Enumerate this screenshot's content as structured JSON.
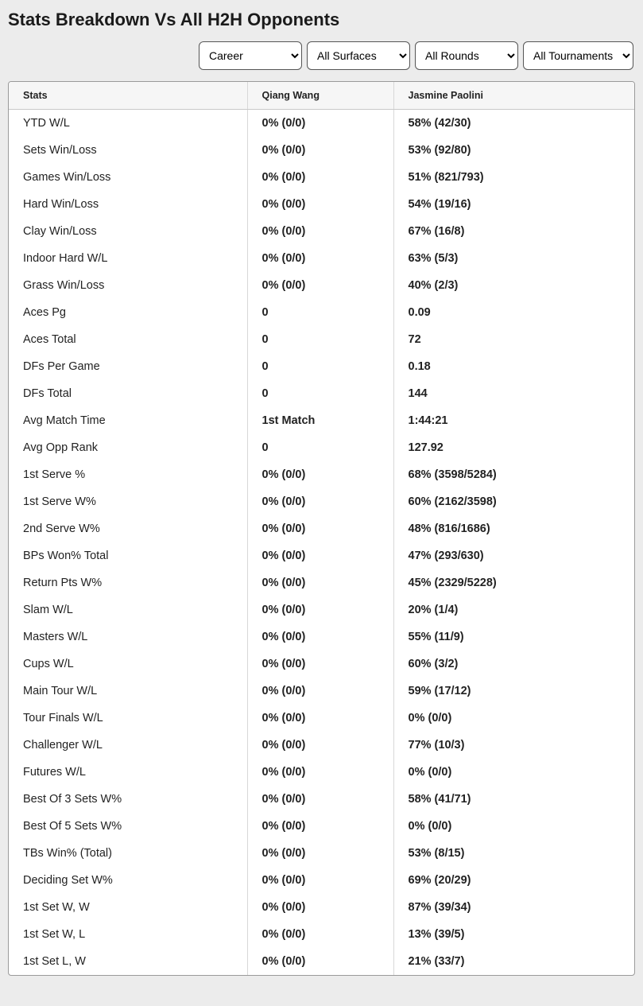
{
  "title": "Stats Breakdown Vs All H2H Opponents",
  "filters": {
    "period": "Career",
    "surface": "All Surfaces",
    "round": "All Rounds",
    "tournament": "All Tournaments"
  },
  "table": {
    "headers": {
      "stat": "Stats",
      "p1": "Qiang Wang",
      "p2": "Jasmine Paolini"
    },
    "rows": [
      {
        "stat": "YTD W/L",
        "p1": "0% (0/0)",
        "p2": "58% (42/30)"
      },
      {
        "stat": "Sets Win/Loss",
        "p1": "0% (0/0)",
        "p2": "53% (92/80)"
      },
      {
        "stat": "Games Win/Loss",
        "p1": "0% (0/0)",
        "p2": "51% (821/793)"
      },
      {
        "stat": "Hard Win/Loss",
        "p1": "0% (0/0)",
        "p2": "54% (19/16)"
      },
      {
        "stat": "Clay Win/Loss",
        "p1": "0% (0/0)",
        "p2": "67% (16/8)"
      },
      {
        "stat": "Indoor Hard W/L",
        "p1": "0% (0/0)",
        "p2": "63% (5/3)"
      },
      {
        "stat": "Grass Win/Loss",
        "p1": "0% (0/0)",
        "p2": "40% (2/3)"
      },
      {
        "stat": "Aces Pg",
        "p1": "0",
        "p2": "0.09"
      },
      {
        "stat": "Aces Total",
        "p1": "0",
        "p2": "72"
      },
      {
        "stat": "DFs Per Game",
        "p1": "0",
        "p2": "0.18"
      },
      {
        "stat": "DFs Total",
        "p1": "0",
        "p2": "144"
      },
      {
        "stat": "Avg Match Time",
        "p1": "1st Match",
        "p2": "1:44:21"
      },
      {
        "stat": "Avg Opp Rank",
        "p1": "0",
        "p2": "127.92"
      },
      {
        "stat": "1st Serve %",
        "p1": "0% (0/0)",
        "p2": "68% (3598/5284)"
      },
      {
        "stat": "1st Serve W%",
        "p1": "0% (0/0)",
        "p2": "60% (2162/3598)"
      },
      {
        "stat": "2nd Serve W%",
        "p1": "0% (0/0)",
        "p2": "48% (816/1686)"
      },
      {
        "stat": "BPs Won% Total",
        "p1": "0% (0/0)",
        "p2": "47% (293/630)"
      },
      {
        "stat": "Return Pts W%",
        "p1": "0% (0/0)",
        "p2": "45% (2329/5228)"
      },
      {
        "stat": "Slam W/L",
        "p1": "0% (0/0)",
        "p2": "20% (1/4)"
      },
      {
        "stat": "Masters W/L",
        "p1": "0% (0/0)",
        "p2": "55% (11/9)"
      },
      {
        "stat": "Cups W/L",
        "p1": "0% (0/0)",
        "p2": "60% (3/2)"
      },
      {
        "stat": "Main Tour W/L",
        "p1": "0% (0/0)",
        "p2": "59% (17/12)"
      },
      {
        "stat": "Tour Finals W/L",
        "p1": "0% (0/0)",
        "p2": "0% (0/0)"
      },
      {
        "stat": "Challenger W/L",
        "p1": "0% (0/0)",
        "p2": "77% (10/3)"
      },
      {
        "stat": "Futures W/L",
        "p1": "0% (0/0)",
        "p2": "0% (0/0)"
      },
      {
        "stat": "Best Of 3 Sets W%",
        "p1": "0% (0/0)",
        "p2": "58% (41/71)"
      },
      {
        "stat": "Best Of 5 Sets W%",
        "p1": "0% (0/0)",
        "p2": "0% (0/0)"
      },
      {
        "stat": "TBs Win% (Total)",
        "p1": "0% (0/0)",
        "p2": "53% (8/15)"
      },
      {
        "stat": "Deciding Set W%",
        "p1": "0% (0/0)",
        "p2": "69% (20/29)"
      },
      {
        "stat": "1st Set W, W",
        "p1": "0% (0/0)",
        "p2": "87% (39/34)"
      },
      {
        "stat": "1st Set W, L",
        "p1": "0% (0/0)",
        "p2": "13% (39/5)"
      },
      {
        "stat": "1st Set L, W",
        "p1": "0% (0/0)",
        "p2": "21% (33/7)"
      }
    ]
  }
}
